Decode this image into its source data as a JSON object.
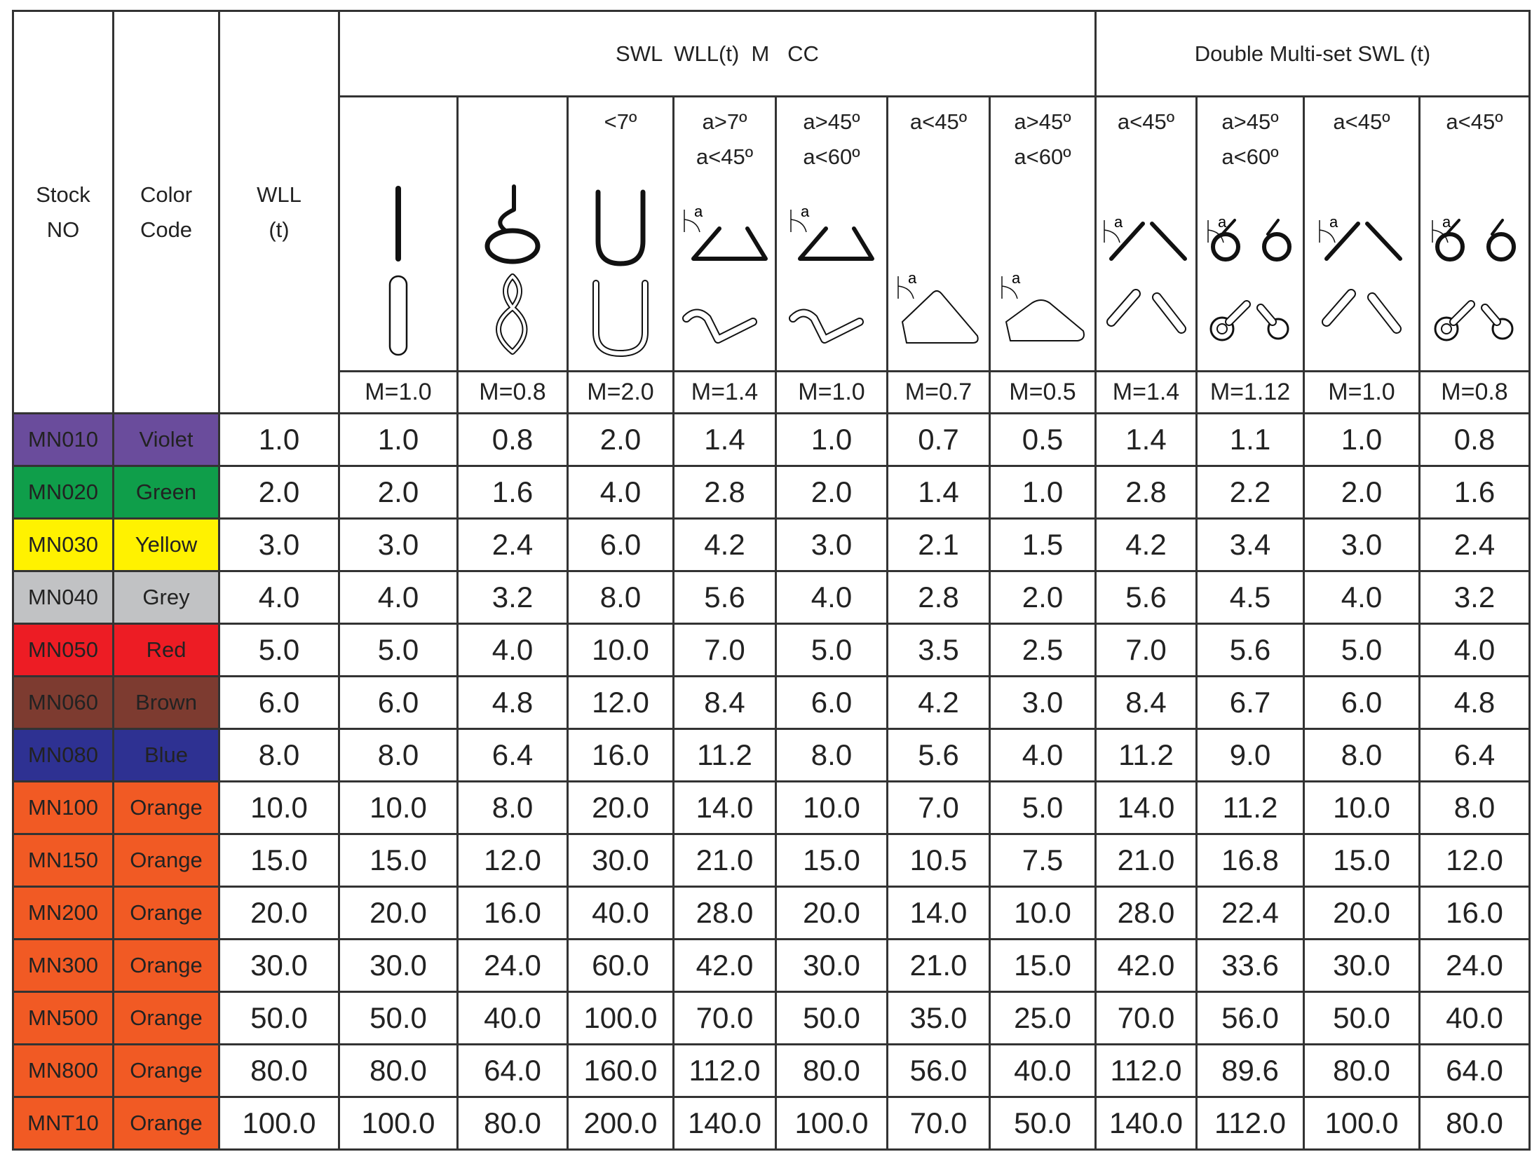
{
  "header": {
    "stock_no": [
      "Stock",
      "NO"
    ],
    "color_code": [
      "Color",
      "Code"
    ],
    "wll": [
      "WLL",
      "(t)"
    ],
    "group_single": "SWL  WLL(t)  M   CC",
    "group_double": "Double Multi-set SWL (t)",
    "diagram_label": "a",
    "columns": [
      {
        "m": "M=1.0"
      },
      {
        "m": "M=0.8"
      },
      {
        "angle": [
          "<7º"
        ],
        "m": "M=2.0"
      },
      {
        "angle": [
          "a>7º",
          "a<45º"
        ],
        "m": "M=1.4"
      },
      {
        "angle": [
          "a>45º",
          "a<60º"
        ],
        "m": "M=1.0"
      },
      {
        "angle": [
          "a<45º"
        ],
        "m": "M=0.7"
      },
      {
        "angle": [
          "a>45º",
          "a<60º"
        ],
        "m": "M=0.5"
      },
      {
        "angle": [
          "a<45º"
        ],
        "m": "M=1.4"
      },
      {
        "angle": [
          "a>45º",
          "a<60º"
        ],
        "m": "M=1.12"
      },
      {
        "angle": [
          "a<45º"
        ],
        "m": "M=1.0"
      },
      {
        "angle": [
          "a<45º"
        ],
        "m": "M=0.8"
      }
    ]
  },
  "table": {
    "rows": [
      {
        "stock": "MN010",
        "color_name": "Violet",
        "color": "#6a4c9c",
        "wll": "1.0",
        "values": [
          "1.0",
          "0.8",
          "2.0",
          "1.4",
          "1.0",
          "0.7",
          "0.5",
          "1.4",
          "1.1",
          "1.0",
          "0.8"
        ]
      },
      {
        "stock": "MN020",
        "color_name": "Green",
        "color": "#0f9e4a",
        "wll": "2.0",
        "values": [
          "2.0",
          "1.6",
          "4.0",
          "2.8",
          "2.0",
          "1.4",
          "1.0",
          "2.8",
          "2.2",
          "2.0",
          "1.6"
        ]
      },
      {
        "stock": "MN030",
        "color_name": "Yellow",
        "color": "#fff200",
        "wll": "3.0",
        "values": [
          "3.0",
          "2.4",
          "6.0",
          "4.2",
          "3.0",
          "2.1",
          "1.5",
          "4.2",
          "3.4",
          "3.0",
          "2.4"
        ]
      },
      {
        "stock": "MN040",
        "color_name": "Grey",
        "color": "#c1c2c4",
        "wll": "4.0",
        "values": [
          "4.0",
          "3.2",
          "8.0",
          "5.6",
          "4.0",
          "2.8",
          "2.0",
          "5.6",
          "4.5",
          "4.0",
          "3.2"
        ]
      },
      {
        "stock": "MN050",
        "color_name": "Red",
        "color": "#ed1c24",
        "wll": "5.0",
        "values": [
          "5.0",
          "4.0",
          "10.0",
          "7.0",
          "5.0",
          "3.5",
          "2.5",
          "7.0",
          "5.6",
          "5.0",
          "4.0"
        ]
      },
      {
        "stock": "MN060",
        "color_name": "Brown",
        "color": "#7d3b30",
        "wll": "6.0",
        "values": [
          "6.0",
          "4.8",
          "12.0",
          "8.4",
          "6.0",
          "4.2",
          "3.0",
          "8.4",
          "6.7",
          "6.0",
          "4.8"
        ]
      },
      {
        "stock": "MN080",
        "color_name": "Blue",
        "color": "#2e3192",
        "wll": "8.0",
        "values": [
          "8.0",
          "6.4",
          "16.0",
          "11.2",
          "8.0",
          "5.6",
          "4.0",
          "11.2",
          "9.0",
          "8.0",
          "6.4"
        ]
      },
      {
        "stock": "MN100",
        "color_name": "Orange",
        "color": "#f15a24",
        "wll": "10.0",
        "values": [
          "10.0",
          "8.0",
          "20.0",
          "14.0",
          "10.0",
          "7.0",
          "5.0",
          "14.0",
          "11.2",
          "10.0",
          "8.0"
        ]
      },
      {
        "stock": "MN150",
        "color_name": "Orange",
        "color": "#f15a24",
        "wll": "15.0",
        "values": [
          "15.0",
          "12.0",
          "30.0",
          "21.0",
          "15.0",
          "10.5",
          "7.5",
          "21.0",
          "16.8",
          "15.0",
          "12.0"
        ]
      },
      {
        "stock": "MN200",
        "color_name": "Orange",
        "color": "#f15a24",
        "wll": "20.0",
        "values": [
          "20.0",
          "16.0",
          "40.0",
          "28.0",
          "20.0",
          "14.0",
          "10.0",
          "28.0",
          "22.4",
          "20.0",
          "16.0"
        ]
      },
      {
        "stock": "MN300",
        "color_name": "Orange",
        "color": "#f15a24",
        "wll": "30.0",
        "values": [
          "30.0",
          "24.0",
          "60.0",
          "42.0",
          "30.0",
          "21.0",
          "15.0",
          "42.0",
          "33.6",
          "30.0",
          "24.0"
        ]
      },
      {
        "stock": "MN500",
        "color_name": "Orange",
        "color": "#f15a24",
        "wll": "50.0",
        "values": [
          "50.0",
          "40.0",
          "100.0",
          "70.0",
          "50.0",
          "35.0",
          "25.0",
          "70.0",
          "56.0",
          "50.0",
          "40.0"
        ]
      },
      {
        "stock": "MN800",
        "color_name": "Orange",
        "color": "#f15a24",
        "wll": "80.0",
        "values": [
          "80.0",
          "64.0",
          "160.0",
          "112.0",
          "80.0",
          "56.0",
          "40.0",
          "112.0",
          "89.6",
          "80.0",
          "64.0"
        ]
      },
      {
        "stock": "MNT10",
        "color_name": "Orange",
        "color": "#f15a24",
        "wll": "100.0",
        "values": [
          "100.0",
          "80.0",
          "200.0",
          "140.0",
          "100.0",
          "70.0",
          "50.0",
          "140.0",
          "112.0",
          "100.0",
          "80.0"
        ]
      }
    ]
  }
}
